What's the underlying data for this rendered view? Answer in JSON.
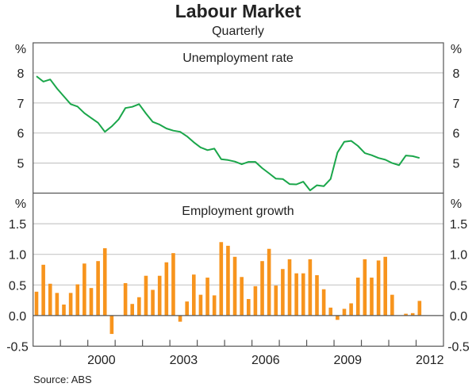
{
  "chart_data": [
    {
      "type": "line",
      "title": "Labour Market",
      "subtitle": "Quarterly",
      "panel_title": "Unemployment rate",
      "ylabel": "%",
      "ylim": [
        4,
        9
      ],
      "yticks": [
        5,
        6,
        7,
        8
      ],
      "xlim": [
        1998,
        2013
      ],
      "xtick_labels": [
        "2000",
        "2003",
        "2006",
        "2009",
        "2012"
      ],
      "start": "1998 Q1",
      "color": "#1aa64a",
      "values": [
        7.89,
        7.71,
        7.78,
        7.48,
        7.22,
        6.96,
        6.88,
        6.66,
        6.5,
        6.34,
        6.04,
        6.22,
        6.45,
        6.83,
        6.87,
        6.96,
        6.65,
        6.37,
        6.28,
        6.15,
        6.08,
        6.04,
        5.89,
        5.69,
        5.52,
        5.43,
        5.48,
        5.13,
        5.1,
        5.05,
        4.96,
        5.04,
        5.04,
        4.83,
        4.66,
        4.48,
        4.47,
        4.3,
        4.29,
        4.38,
        4.09,
        4.26,
        4.23,
        4.47,
        5.35,
        5.71,
        5.74,
        5.57,
        5.33,
        5.26,
        5.17,
        5.11,
        5.0,
        4.93,
        5.25,
        5.23,
        5.17
      ]
    },
    {
      "type": "bar",
      "panel_title": "Employment growth",
      "ylabel": "%",
      "ylim": [
        -0.5,
        2.0
      ],
      "yticks": [
        -0.5,
        0.0,
        0.5,
        1.0,
        1.5
      ],
      "ytick_labels": [
        "-0.5",
        "0.0",
        "0.5",
        "1.0",
        "1.5"
      ],
      "start": "1998 Q1",
      "color": "#f7941d",
      "values": [
        0.39,
        0.83,
        0.52,
        0.37,
        0.18,
        0.37,
        0.51,
        0.85,
        0.45,
        0.89,
        1.1,
        -0.3,
        0,
        0.53,
        0.19,
        0.3,
        0.65,
        0.42,
        0.65,
        0.87,
        1.02,
        -0.1,
        0.23,
        0.67,
        0.34,
        0.62,
        0.33,
        1.2,
        1.14,
        0.96,
        0.63,
        0.27,
        0.48,
        0.89,
        1.09,
        0.49,
        0.76,
        0.92,
        0.69,
        0.69,
        0.92,
        0.66,
        0.43,
        0.13,
        -0.07,
        0.11,
        0.2,
        0.62,
        0.92,
        0.62,
        0.9,
        0.96,
        0.34,
        0,
        0.03,
        0.04,
        0.24
      ]
    }
  ],
  "source": "Source: ABS"
}
